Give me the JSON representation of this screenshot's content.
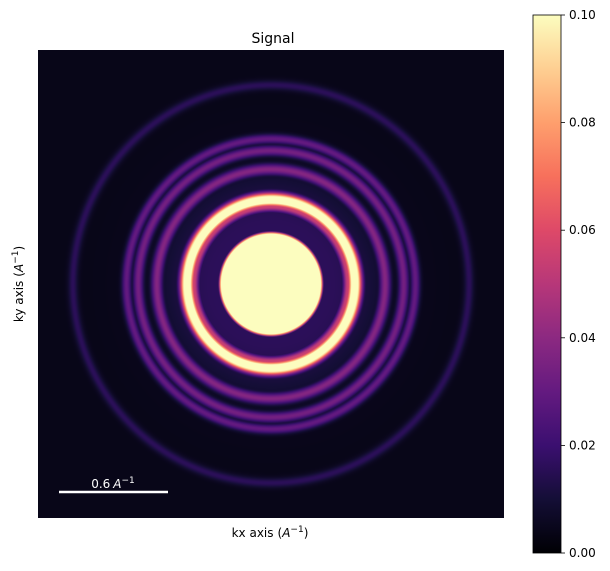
{
  "chart_data": {
    "type": "heatmap",
    "title": "Signal",
    "xlabel": "kx axis",
    "xlabel_unit_base": "A",
    "xlabel_unit_exp": "−1",
    "ylabel": "ky axis",
    "ylabel_unit_base": "A",
    "ylabel_unit_exp": "−1",
    "colormap": "magma",
    "clim": [
      0.0,
      0.1
    ],
    "colorbar": {
      "ticks": [
        0.0,
        0.02,
        0.04,
        0.06,
        0.08,
        0.1
      ],
      "tick_labels": [
        "0.00",
        "0.02",
        "0.04",
        "0.06",
        "0.08",
        "0.10"
      ]
    },
    "scalebar": {
      "value": "0.6",
      "unit_base": "A",
      "unit_exp": "−1",
      "color": "#ffffff"
    },
    "radial_profile": {
      "unit": "fraction of image width",
      "center_disk_radius": 0.105,
      "center_value": 0.12,
      "rings": [
        {
          "radius": 0.165,
          "width": 0.01,
          "value": 0.055
        },
        {
          "radius": 0.18,
          "width": 0.014,
          "value": 0.13
        },
        {
          "radius": 0.245,
          "width": 0.012,
          "value": 0.038
        },
        {
          "radius": 0.285,
          "width": 0.011,
          "value": 0.034
        },
        {
          "radius": 0.31,
          "width": 0.01,
          "value": 0.03
        },
        {
          "radius": 0.425,
          "width": 0.01,
          "value": 0.016
        }
      ],
      "background_value": 0.004
    }
  }
}
